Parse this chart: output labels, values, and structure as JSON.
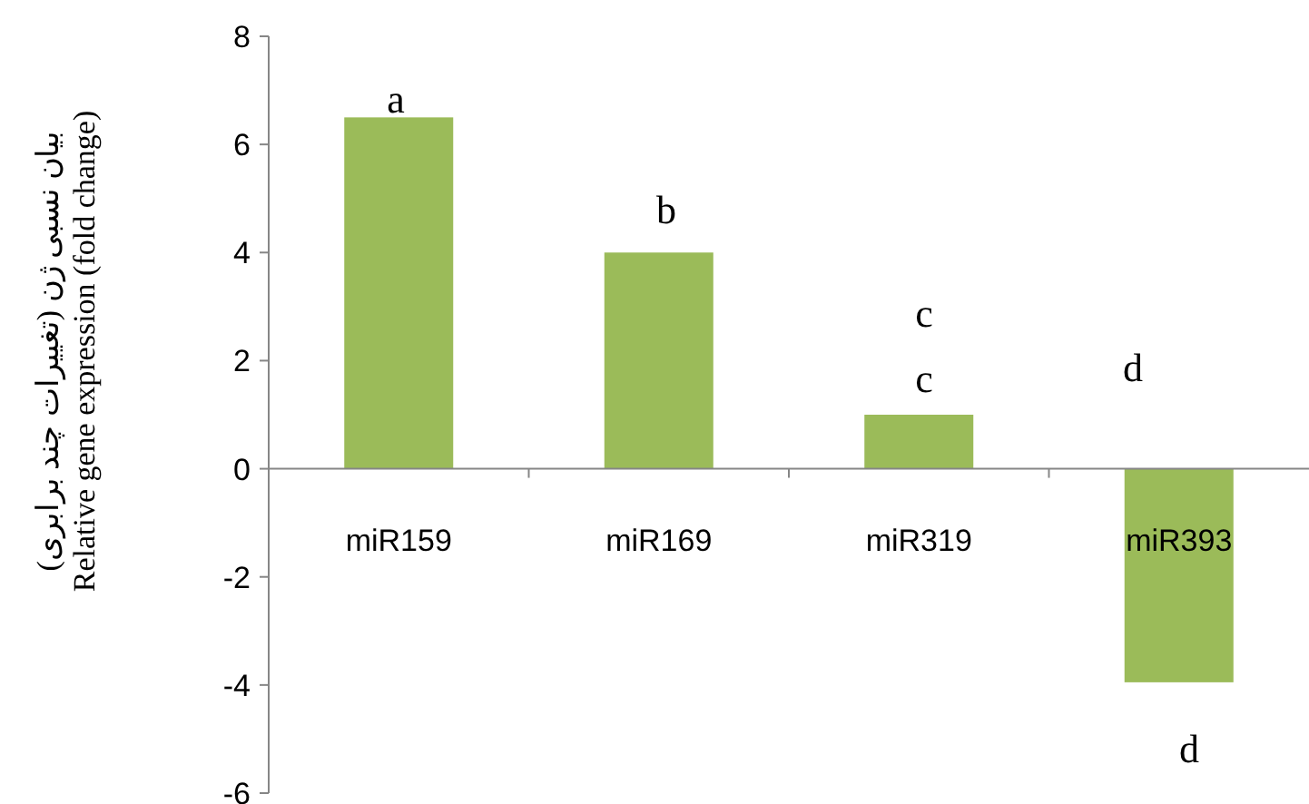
{
  "chart_data": {
    "type": "bar",
    "ylabel": "بیان نسبی ژن (تغییرات چند برابری)\nRelative gene expression (fold change)",
    "categories": [
      "miR159",
      "miR169",
      "miR319",
      "miR393"
    ],
    "values": [
      6.5,
      4.0,
      1.0,
      -3.95
    ],
    "color": "#9bbb59",
    "ylim": [
      -6,
      8
    ],
    "yticks": [
      -6,
      -4,
      -2,
      0,
      2,
      4,
      6,
      8
    ],
    "annotations": [
      "a",
      "b",
      "c",
      "c",
      "d",
      "d"
    ]
  }
}
